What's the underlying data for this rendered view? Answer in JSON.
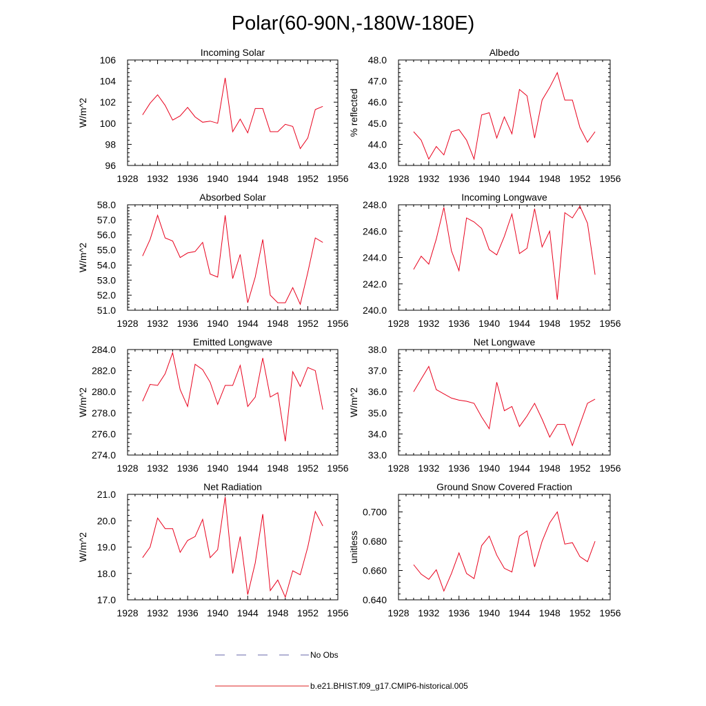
{
  "title": "Polar(60-90N,-180W-180E)",
  "legend": [
    {
      "label": "No Obs",
      "color": "#6666aa",
      "dashed": true
    },
    {
      "label": "b.e21.BHIST.f09_g17.CMIP6-historical.005",
      "color": "#dd2222",
      "dashed": false
    }
  ],
  "colors": {
    "model": "#e8001c",
    "obs": "#5a5ab0",
    "axis": "#000000"
  },
  "chart_data": [
    {
      "type": "line",
      "title": "Incoming Solar",
      "ylabel": "W/m^2",
      "xlim": [
        1928,
        1956
      ],
      "ylim": [
        96,
        106
      ],
      "xticks": [
        1928,
        1932,
        1936,
        1940,
        1944,
        1948,
        1952,
        1956
      ],
      "yticks": [
        96,
        98,
        100,
        102,
        104,
        106
      ],
      "yformat": 0,
      "x": [
        1930,
        1931,
        1932,
        1933,
        1934,
        1935,
        1936,
        1937,
        1938,
        1939,
        1940,
        1941,
        1942,
        1943,
        1944,
        1945,
        1946,
        1947,
        1948,
        1949,
        1950,
        1951,
        1952,
        1953,
        1954
      ],
      "series": [
        {
          "name": "b.e21.BHIST.f09_g17.CMIP6-historical.005",
          "values": [
            100.8,
            101.9,
            102.7,
            101.7,
            100.3,
            100.7,
            101.5,
            100.6,
            100.1,
            100.2,
            100.0,
            104.3,
            99.2,
            100.4,
            99.1,
            101.4,
            101.4,
            99.2,
            99.2,
            99.9,
            99.7,
            97.6,
            98.6,
            101.3,
            101.6
          ]
        }
      ]
    },
    {
      "type": "line",
      "title": "Albedo",
      "ylabel": "% reflected",
      "xlim": [
        1928,
        1956
      ],
      "ylim": [
        43,
        48
      ],
      "xticks": [
        1928,
        1932,
        1936,
        1940,
        1944,
        1948,
        1952,
        1956
      ],
      "yticks": [
        43,
        44,
        45,
        46,
        47,
        48
      ],
      "yformat": 1,
      "x": [
        1930,
        1931,
        1932,
        1933,
        1934,
        1935,
        1936,
        1937,
        1938,
        1939,
        1940,
        1941,
        1942,
        1943,
        1944,
        1945,
        1946,
        1947,
        1948,
        1949,
        1950,
        1951,
        1952,
        1953,
        1954
      ],
      "series": [
        {
          "name": "b.e21.BHIST.f09_g17.CMIP6-historical.005",
          "values": [
            44.6,
            44.2,
            43.3,
            43.9,
            43.5,
            44.6,
            44.7,
            44.2,
            43.3,
            45.4,
            45.5,
            44.3,
            45.3,
            44.5,
            46.6,
            46.3,
            44.3,
            46.1,
            46.7,
            47.4,
            46.1,
            46.1,
            44.8,
            44.1,
            44.6
          ]
        }
      ]
    },
    {
      "type": "line",
      "title": "Absorbed Solar",
      "ylabel": "W/m^2",
      "xlim": [
        1928,
        1956
      ],
      "ylim": [
        51,
        58
      ],
      "xticks": [
        1928,
        1932,
        1936,
        1940,
        1944,
        1948,
        1952,
        1956
      ],
      "yticks": [
        51,
        52,
        53,
        54,
        55,
        56,
        57,
        58
      ],
      "yformat": 1,
      "x": [
        1930,
        1931,
        1932,
        1933,
        1934,
        1935,
        1936,
        1937,
        1938,
        1939,
        1940,
        1941,
        1942,
        1943,
        1944,
        1945,
        1946,
        1947,
        1948,
        1949,
        1950,
        1951,
        1952,
        1953,
        1954
      ],
      "series": [
        {
          "name": "b.e21.BHIST.f09_g17.CMIP6-historical.005",
          "values": [
            54.6,
            55.7,
            57.3,
            55.8,
            55.6,
            54.5,
            54.8,
            54.9,
            55.5,
            53.4,
            53.2,
            57.3,
            53.1,
            54.7,
            51.5,
            53.2,
            55.7,
            52.0,
            51.5,
            51.5,
            52.5,
            51.4,
            53.5,
            55.8,
            55.5
          ]
        }
      ]
    },
    {
      "type": "line",
      "title": "Incoming Longwave",
      "ylabel": "",
      "xlim": [
        1928,
        1956
      ],
      "ylim": [
        240,
        248
      ],
      "xticks": [
        1928,
        1932,
        1936,
        1940,
        1944,
        1948,
        1952,
        1956
      ],
      "yticks": [
        240,
        242,
        244,
        246,
        248
      ],
      "yformat": 1,
      "x": [
        1930,
        1931,
        1932,
        1933,
        1934,
        1935,
        1936,
        1937,
        1938,
        1939,
        1940,
        1941,
        1942,
        1943,
        1944,
        1945,
        1946,
        1947,
        1948,
        1949,
        1950,
        1951,
        1952,
        1953,
        1954
      ],
      "series": [
        {
          "name": "b.e21.BHIST.f09_g17.CMIP6-historical.005",
          "values": [
            243.1,
            244.1,
            243.5,
            245.4,
            247.8,
            244.5,
            243.0,
            247.0,
            246.7,
            246.2,
            244.6,
            244.2,
            245.6,
            247.3,
            244.3,
            244.7,
            247.7,
            244.8,
            246.0,
            240.8,
            247.4,
            247.0,
            247.9,
            246.6,
            242.7
          ]
        }
      ]
    },
    {
      "type": "line",
      "title": "Emitted Longwave",
      "ylabel": "W/m^2",
      "xlim": [
        1928,
        1956
      ],
      "ylim": [
        274,
        284
      ],
      "xticks": [
        1928,
        1932,
        1936,
        1940,
        1944,
        1948,
        1952,
        1956
      ],
      "yticks": [
        274,
        276,
        278,
        280,
        282,
        284
      ],
      "yformat": 1,
      "x": [
        1930,
        1931,
        1932,
        1933,
        1934,
        1935,
        1936,
        1937,
        1938,
        1939,
        1940,
        1941,
        1942,
        1943,
        1944,
        1945,
        1946,
        1947,
        1948,
        1949,
        1950,
        1951,
        1952,
        1953,
        1954
      ],
      "series": [
        {
          "name": "b.e21.BHIST.f09_g17.CMIP6-historical.005",
          "values": [
            279.1,
            280.7,
            280.6,
            281.7,
            283.7,
            280.2,
            278.6,
            282.6,
            282.1,
            280.9,
            278.8,
            280.6,
            280.6,
            282.5,
            278.6,
            279.5,
            283.2,
            279.5,
            279.9,
            275.3,
            281.9,
            280.5,
            282.3,
            282.0,
            278.3
          ]
        }
      ]
    },
    {
      "type": "line",
      "title": "Net Longwave",
      "ylabel": "W/m^2",
      "xlim": [
        1928,
        1956
      ],
      "ylim": [
        33,
        38
      ],
      "xticks": [
        1928,
        1932,
        1936,
        1940,
        1944,
        1948,
        1952,
        1956
      ],
      "yticks": [
        33,
        34,
        35,
        36,
        37,
        38
      ],
      "yformat": 1,
      "x": [
        1930,
        1931,
        1932,
        1933,
        1934,
        1935,
        1936,
        1937,
        1938,
        1939,
        1940,
        1941,
        1942,
        1943,
        1944,
        1945,
        1946,
        1947,
        1948,
        1949,
        1950,
        1951,
        1952,
        1953,
        1954
      ],
      "series": [
        {
          "name": "b.e21.BHIST.f09_g17.CMIP6-historical.005",
          "values": [
            36.0,
            36.6,
            37.2,
            36.1,
            35.9,
            35.7,
            35.6,
            35.55,
            35.45,
            34.8,
            34.25,
            36.45,
            35.1,
            35.3,
            34.35,
            34.85,
            35.45,
            34.7,
            33.85,
            34.45,
            34.45,
            33.45,
            34.45,
            35.45,
            35.65
          ]
        }
      ]
    },
    {
      "type": "line",
      "title": "Net Radiation",
      "ylabel": "W/m^2",
      "xlim": [
        1928,
        1956
      ],
      "ylim": [
        17,
        21
      ],
      "xticks": [
        1928,
        1932,
        1936,
        1940,
        1944,
        1948,
        1952,
        1956
      ],
      "yticks": [
        17,
        18,
        19,
        20,
        21
      ],
      "yformat": 1,
      "x": [
        1930,
        1931,
        1932,
        1933,
        1934,
        1935,
        1936,
        1937,
        1938,
        1939,
        1940,
        1941,
        1942,
        1943,
        1944,
        1945,
        1946,
        1947,
        1948,
        1949,
        1950,
        1951,
        1952,
        1953,
        1954
      ],
      "series": [
        {
          "name": "b.e21.BHIST.f09_g17.CMIP6-historical.005",
          "values": [
            18.6,
            19.0,
            20.1,
            19.7,
            19.7,
            18.8,
            19.25,
            19.4,
            20.05,
            18.6,
            18.9,
            20.9,
            18.0,
            19.4,
            17.2,
            18.4,
            20.25,
            17.35,
            17.75,
            17.1,
            18.1,
            17.95,
            19.0,
            20.35,
            19.8
          ]
        }
      ]
    },
    {
      "type": "line",
      "title": "Ground Snow Covered Fraction",
      "ylabel": "unitless",
      "xlim": [
        1928,
        1956
      ],
      "ylim": [
        0.64,
        0.712
      ],
      "xticks": [
        1928,
        1932,
        1936,
        1940,
        1944,
        1948,
        1952,
        1956
      ],
      "yticks": [
        0.64,
        0.66,
        0.68,
        0.7
      ],
      "yformat": 3,
      "x": [
        1930,
        1931,
        1932,
        1933,
        1934,
        1935,
        1936,
        1937,
        1938,
        1939,
        1940,
        1941,
        1942,
        1943,
        1944,
        1945,
        1946,
        1947,
        1948,
        1949,
        1950,
        1951,
        1952,
        1953,
        1954
      ],
      "series": [
        {
          "name": "b.e21.BHIST.f09_g17.CMIP6-historical.005",
          "values": [
            0.664,
            0.6575,
            0.654,
            0.6605,
            0.646,
            0.658,
            0.672,
            0.658,
            0.6545,
            0.677,
            0.6835,
            0.6705,
            0.6615,
            0.659,
            0.6835,
            0.687,
            0.6625,
            0.68,
            0.6925,
            0.7,
            0.678,
            0.679,
            0.6695,
            0.666,
            0.68
          ]
        }
      ]
    }
  ]
}
